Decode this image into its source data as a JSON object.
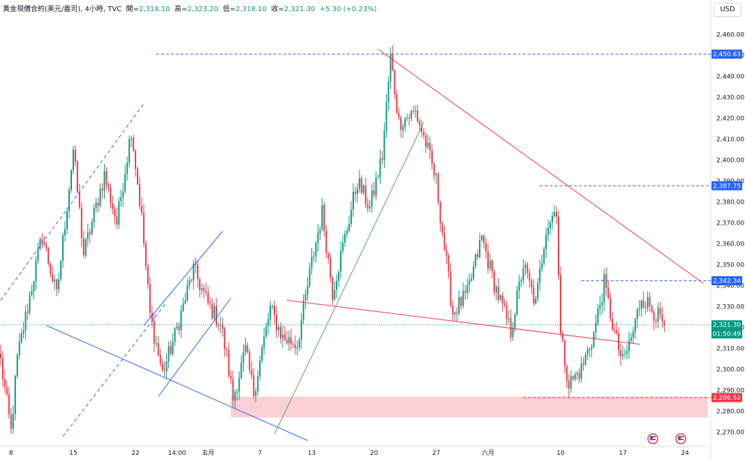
{
  "header": {
    "instrument": "黃金現價合約(美元/盎司), 4小時, TVC",
    "open_label": "開=",
    "open": "2,318.10",
    "high_label": "高=",
    "high": "2,323.20",
    "low_label": "低=",
    "low": "2,318.10",
    "close_label": "收=",
    "close": "2,321.30",
    "change": "+5.30 (+0.23%)"
  },
  "currency_button": "USD",
  "countdown": "01:50:49",
  "colors": {
    "up": "#089981",
    "down": "#f23645",
    "blue": "#2962ff",
    "red_line": "#f23645",
    "green_line": "#4caf50",
    "zone": "#f9c0c6"
  },
  "chart_data": {
    "type": "candlestick",
    "interval": "4 hours",
    "ylim": [
      2265,
      2468
    ],
    "y_ticks": [
      "2,270.00",
      "2,280.00",
      "2,290.00",
      "2,300.00",
      "2,310.00",
      "2,320.00",
      "2,330.00",
      "2,340.00",
      "2,350.00",
      "2,360.00",
      "2,370.00",
      "2,380.00",
      "2,390.00",
      "2,400.00",
      "2,410.00",
      "2,420.00",
      "2,430.00",
      "2,440.00",
      "2,450.00",
      "2,460.00"
    ],
    "x_ticks": [
      {
        "label": "8",
        "bar": 5
      },
      {
        "label": "15",
        "bar": 35
      },
      {
        "label": "22",
        "bar": 65
      },
      {
        "label": "14:00",
        "bar": 85
      },
      {
        "label": "五月",
        "bar": 100
      },
      {
        "label": "7",
        "bar": 125
      },
      {
        "label": "13",
        "bar": 150
      },
      {
        "label": "20",
        "bar": 180
      },
      {
        "label": "27",
        "bar": 210
      },
      {
        "label": "六月",
        "bar": 235
      },
      {
        "label": "10",
        "bar": 270
      },
      {
        "label": "17",
        "bar": 300
      },
      {
        "label": "24",
        "bar": 330
      }
    ],
    "price_labels": [
      {
        "text": "2,450.63",
        "value": 2450.63,
        "style": "blue"
      },
      {
        "text": "2,387.75",
        "value": 2387.75,
        "style": "blue"
      },
      {
        "text": "2,342.34",
        "value": 2342.34,
        "style": "blue"
      },
      {
        "text": "2,321.30",
        "value": 2321.3,
        "style": "green"
      },
      {
        "text": "2,286.52",
        "value": 2286.52,
        "style": "red"
      }
    ],
    "levels": [
      {
        "value": 2450.63,
        "bar_start": 75,
        "color": "blue"
      },
      {
        "value": 2387.75,
        "bar_start": 260,
        "color": "blue"
      },
      {
        "value": 2342.34,
        "bar_start": 280,
        "color": "blue"
      },
      {
        "value": 2286.52,
        "bar_start": 252,
        "color": "red"
      }
    ],
    "zone": {
      "bar_start": 111,
      "bar_end": 341,
      "low": 2277,
      "high": 2287
    },
    "trendlines": [
      {
        "color": "red",
        "from": {
          "bar": 182,
          "price": 2453
        },
        "to": {
          "bar": 339,
          "price": 2341
        }
      },
      {
        "color": "red",
        "from": {
          "bar": 138,
          "price": 2333
        },
        "to": {
          "bar": 308,
          "price": 2312
        }
      },
      {
        "color": "green",
        "from": {
          "bar": 132,
          "price": 2269
        },
        "to": {
          "bar": 204,
          "price": 2418
        }
      },
      {
        "color": "blue",
        "from": {
          "bar": 22,
          "price": 2321
        },
        "to": {
          "bar": 148,
          "price": 2266
        }
      },
      {
        "color": "blue",
        "from": {
          "bar": 76,
          "price": 2287
        },
        "to": {
          "bar": 111,
          "price": 2334
        }
      },
      {
        "color": "blue",
        "from": {
          "bar": 69,
          "price": 2321
        },
        "to": {
          "bar": 107,
          "price": 2366
        }
      },
      {
        "color": "blue",
        "dashed": true,
        "from": {
          "bar": 0,
          "price": 2333
        },
        "to": {
          "bar": 69,
          "price": 2427
        }
      },
      {
        "color": "blue",
        "dashed": true,
        "from": {
          "bar": 30,
          "price": 2268
        },
        "to": {
          "bar": 80,
          "price": 2332
        }
      }
    ],
    "anchors": [
      {
        "bar": 0,
        "price": 2304
      },
      {
        "bar": 5,
        "price": 2270
      },
      {
        "bar": 8,
        "price": 2305
      },
      {
        "bar": 12,
        "price": 2325
      },
      {
        "bar": 20,
        "price": 2364
      },
      {
        "bar": 27,
        "price": 2335
      },
      {
        "bar": 35,
        "price": 2405
      },
      {
        "bar": 40,
        "price": 2355
      },
      {
        "bar": 50,
        "price": 2393
      },
      {
        "bar": 56,
        "price": 2370
      },
      {
        "bar": 63,
        "price": 2415
      },
      {
        "bar": 68,
        "price": 2372
      },
      {
        "bar": 72,
        "price": 2326
      },
      {
        "bar": 78,
        "price": 2298
      },
      {
        "bar": 84,
        "price": 2316
      },
      {
        "bar": 93,
        "price": 2348
      },
      {
        "bar": 100,
        "price": 2331
      },
      {
        "bar": 106,
        "price": 2322
      },
      {
        "bar": 109,
        "price": 2306
      },
      {
        "bar": 112,
        "price": 2286
      },
      {
        "bar": 118,
        "price": 2309
      },
      {
        "bar": 122,
        "price": 2289
      },
      {
        "bar": 130,
        "price": 2329
      },
      {
        "bar": 136,
        "price": 2315
      },
      {
        "bar": 143,
        "price": 2312
      },
      {
        "bar": 150,
        "price": 2351
      },
      {
        "bar": 155,
        "price": 2375
      },
      {
        "bar": 160,
        "price": 2337
      },
      {
        "bar": 166,
        "price": 2363
      },
      {
        "bar": 172,
        "price": 2390
      },
      {
        "bar": 178,
        "price": 2377
      },
      {
        "bar": 184,
        "price": 2402
      },
      {
        "bar": 188,
        "price": 2449
      },
      {
        "bar": 192,
        "price": 2418
      },
      {
        "bar": 200,
        "price": 2423
      },
      {
        "bar": 205,
        "price": 2408
      },
      {
        "bar": 210,
        "price": 2390
      },
      {
        "bar": 214,
        "price": 2358
      },
      {
        "bar": 218,
        "price": 2327
      },
      {
        "bar": 225,
        "price": 2336
      },
      {
        "bar": 232,
        "price": 2363
      },
      {
        "bar": 238,
        "price": 2341
      },
      {
        "bar": 246,
        "price": 2318
      },
      {
        "bar": 252,
        "price": 2350
      },
      {
        "bar": 258,
        "price": 2331
      },
      {
        "bar": 263,
        "price": 2368
      },
      {
        "bar": 268,
        "price": 2377
      },
      {
        "bar": 270,
        "price": 2316
      },
      {
        "bar": 274,
        "price": 2293
      },
      {
        "bar": 280,
        "price": 2300
      },
      {
        "bar": 286,
        "price": 2317
      },
      {
        "bar": 291,
        "price": 2341
      },
      {
        "bar": 296,
        "price": 2317
      },
      {
        "bar": 300,
        "price": 2303
      },
      {
        "bar": 305,
        "price": 2318
      },
      {
        "bar": 309,
        "price": 2335
      },
      {
        "bar": 314,
        "price": 2329
      },
      {
        "bar": 320,
        "price": 2321
      }
    ],
    "last_price": 2321.3
  }
}
